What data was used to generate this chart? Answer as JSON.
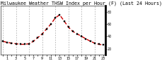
{
  "title": "Milwaukee Weather THSW Index per Hour (F) (Last 24 Hours)",
  "hours": [
    0,
    1,
    2,
    3,
    4,
    5,
    6,
    7,
    8,
    9,
    10,
    11,
    12,
    13,
    14,
    15,
    16,
    17,
    18,
    19,
    20,
    21,
    22,
    23
  ],
  "values": [
    32,
    30,
    29,
    28,
    27,
    27,
    28,
    32,
    38,
    44,
    52,
    60,
    70,
    75,
    65,
    55,
    48,
    44,
    40,
    36,
    32,
    29,
    27,
    26
  ],
  "line_color": "#cc0000",
  "marker_color": "#000000",
  "bg_color": "#ffffff",
  "grid_color": "#888888",
  "ylim": [
    10,
    90
  ],
  "yticks": [
    20,
    40,
    60,
    80
  ],
  "ytick_labels": [
    "20",
    "40",
    "60",
    "80"
  ],
  "title_fontsize": 4.8,
  "tick_fontsize": 3.5,
  "grid_positions": [
    0,
    3,
    6,
    9,
    12,
    15,
    18,
    21
  ]
}
